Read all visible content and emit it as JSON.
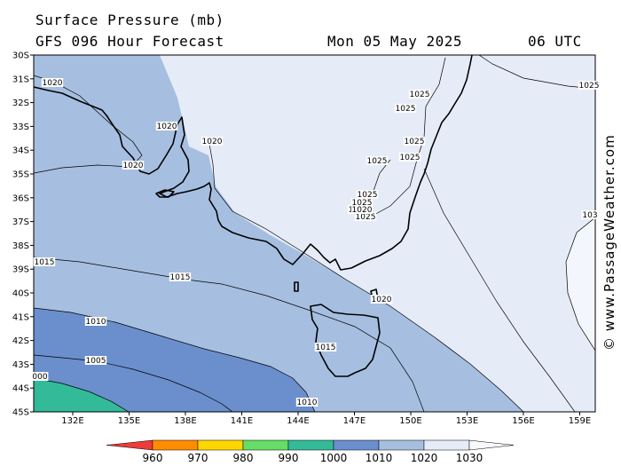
{
  "header": {
    "title": "Surface Pressure (mb)",
    "subtitle": "GFS 096 Hour Forecast",
    "date": "Mon 05 May 2025",
    "time": "06 UTC"
  },
  "credit": "© www.PassageWeather.com",
  "map": {
    "lat_labels": [
      "30S",
      "31S",
      "32S",
      "33S",
      "34S",
      "35S",
      "36S",
      "37S",
      "38S",
      "39S",
      "40S",
      "41S",
      "42S",
      "43S",
      "44S",
      "45S"
    ],
    "lon_labels": [
      "132E",
      "135E",
      "138E",
      "141E",
      "144E",
      "147E",
      "150E",
      "153E",
      "156E",
      "159E"
    ],
    "isobar_labels": [
      "1020",
      "1020",
      "1020",
      "1020",
      "1020",
      "1025",
      "1025",
      "1025",
      "1025",
      "1025",
      "1025",
      "1025",
      "1025",
      "1025",
      "1025",
      "1015",
      "1015",
      "1015",
      "1010",
      "1010",
      "1005",
      "000",
      "1020",
      "103"
    ]
  },
  "legend": {
    "labels": [
      "960",
      "970",
      "980",
      "990",
      "1000",
      "1010",
      "1020",
      "1030"
    ],
    "colors": [
      "#ee3b3b",
      "#ff8c00",
      "#ffd700",
      "#66dd66",
      "#33bb99",
      "#6a8fcc",
      "#a6bfe0",
      "#e6ecf7"
    ]
  }
}
